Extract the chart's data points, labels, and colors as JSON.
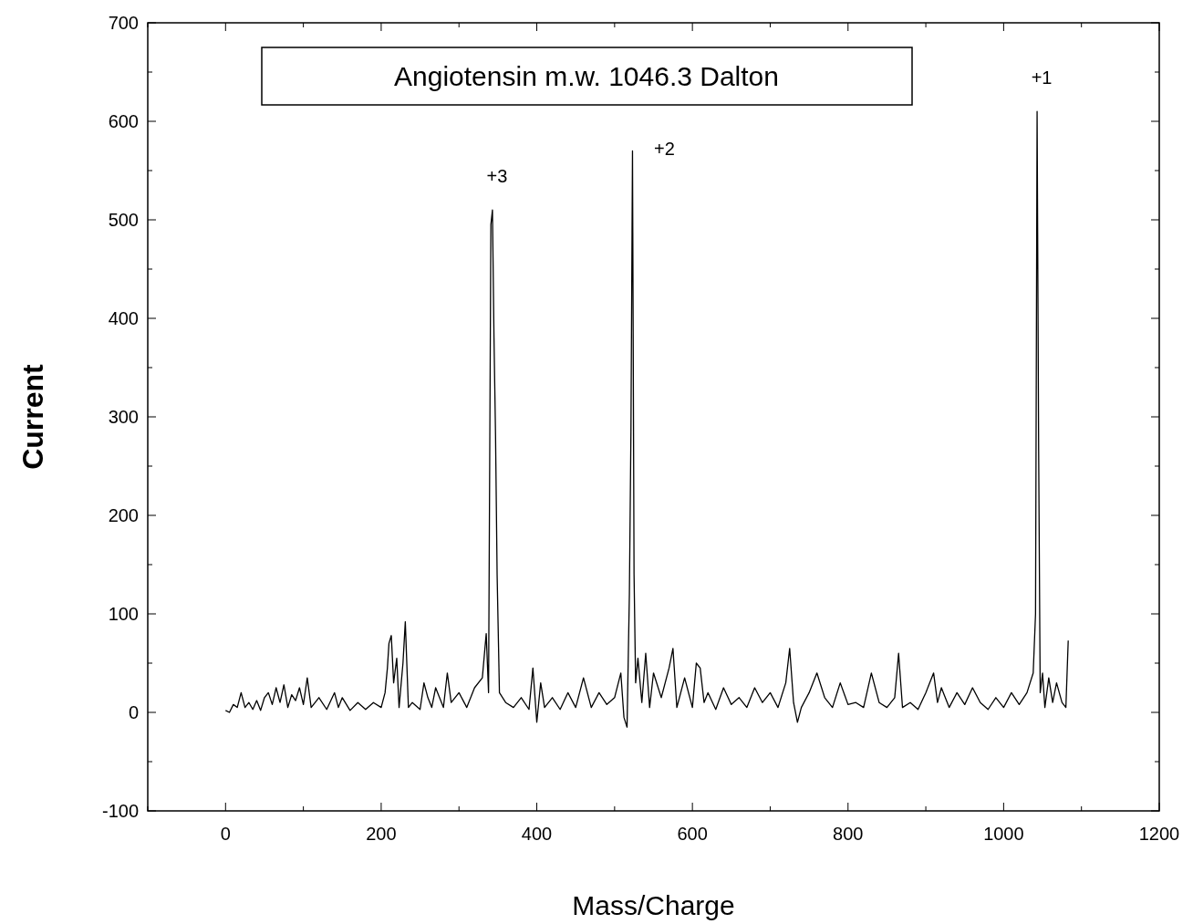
{
  "chart_data": {
    "type": "line",
    "title": "Angiotensin m.w. 1046.3 Dalton",
    "xlabel": "Mass/Charge",
    "ylabel": "Current",
    "xlim": [
      -100,
      1200
    ],
    "ylim": [
      -100,
      700
    ],
    "xticks": [
      {
        "value": -100,
        "label": null
      },
      0,
      {
        "value": 100,
        "label": null
      },
      200,
      {
        "value": 300,
        "label": null
      },
      400,
      {
        "value": 500,
        "label": null
      },
      600,
      {
        "value": 700,
        "label": null
      },
      800,
      {
        "value": 900,
        "label": null
      },
      1000,
      {
        "value": 1100,
        "label": null
      },
      1200
    ],
    "yticks": [
      -100,
      {
        "value": -50,
        "label": null
      },
      0,
      {
        "value": 50,
        "label": null
      },
      100,
      {
        "value": 150,
        "label": null
      },
      200,
      {
        "value": 250,
        "label": null
      },
      300,
      {
        "value": 350,
        "label": null
      },
      400,
      {
        "value": 450,
        "label": null
      },
      500,
      {
        "value": 550,
        "label": null
      },
      600,
      {
        "value": 650,
        "label": null
      },
      700
    ],
    "grid": false,
    "marker": "none",
    "line_style": "solid",
    "annotations": [
      {
        "text": "+3",
        "x": 343,
        "y": 510
      },
      {
        "text": "+2",
        "x": 523,
        "y": 570
      },
      {
        "text": "+1",
        "x": 1043,
        "y": 610
      }
    ],
    "series": [
      {
        "color": "#000000",
        "x": [
          0,
          5,
          10,
          15,
          20,
          25,
          30,
          35,
          40,
          45,
          50,
          55,
          60,
          65,
          70,
          75,
          80,
          85,
          90,
          95,
          100,
          105,
          110,
          120,
          130,
          140,
          145,
          150,
          160,
          170,
          180,
          190,
          200,
          205,
          208,
          210,
          213,
          216,
          220,
          223,
          228,
          231,
          235,
          240,
          250,
          255,
          260,
          265,
          270,
          280,
          285,
          290,
          300,
          310,
          320,
          330,
          335,
          338,
          341,
          343,
          345,
          347,
          349,
          352,
          360,
          370,
          380,
          390,
          395,
          400,
          405,
          410,
          420,
          430,
          440,
          450,
          460,
          470,
          480,
          490,
          500,
          508,
          512,
          516,
          519,
          521,
          523,
          525,
          527,
          530,
          535,
          540,
          545,
          550,
          560,
          570,
          575,
          580,
          590,
          600,
          605,
          610,
          615,
          620,
          630,
          640,
          650,
          660,
          670,
          680,
          690,
          700,
          710,
          720,
          725,
          730,
          735,
          740,
          750,
          760,
          770,
          780,
          790,
          800,
          810,
          820,
          830,
          840,
          850,
          860,
          865,
          870,
          880,
          890,
          900,
          910,
          915,
          920,
          930,
          940,
          950,
          960,
          970,
          980,
          990,
          1000,
          1010,
          1020,
          1030,
          1038,
          1041,
          1043,
          1045,
          1047,
          1050,
          1053,
          1058,
          1063,
          1068,
          1075,
          1080,
          1083
        ],
        "values": [
          2,
          0,
          8,
          5,
          20,
          5,
          10,
          3,
          12,
          2,
          15,
          20,
          8,
          25,
          10,
          28,
          5,
          18,
          12,
          25,
          8,
          35,
          5,
          15,
          3,
          20,
          5,
          15,
          2,
          10,
          3,
          10,
          5,
          20,
          45,
          70,
          78,
          30,
          55,
          5,
          50,
          92,
          5,
          10,
          3,
          30,
          15,
          5,
          25,
          5,
          40,
          10,
          20,
          5,
          25,
          35,
          80,
          20,
          495,
          510,
          380,
          280,
          140,
          20,
          10,
          5,
          15,
          3,
          45,
          -10,
          30,
          5,
          15,
          3,
          20,
          5,
          35,
          5,
          20,
          8,
          15,
          40,
          -5,
          -15,
          120,
          285,
          570,
          140,
          30,
          55,
          10,
          60,
          5,
          40,
          15,
          45,
          65,
          5,
          35,
          5,
          50,
          45,
          10,
          20,
          3,
          25,
          8,
          15,
          5,
          25,
          10,
          20,
          5,
          30,
          65,
          10,
          -10,
          5,
          20,
          40,
          15,
          5,
          30,
          8,
          10,
          5,
          40,
          10,
          5,
          15,
          60,
          5,
          10,
          3,
          20,
          40,
          10,
          25,
          5,
          20,
          8,
          25,
          10,
          3,
          15,
          5,
          20,
          8,
          20,
          40,
          100,
          610,
          265,
          20,
          40,
          5,
          35,
          10,
          30,
          10,
          5,
          73
        ]
      }
    ]
  }
}
